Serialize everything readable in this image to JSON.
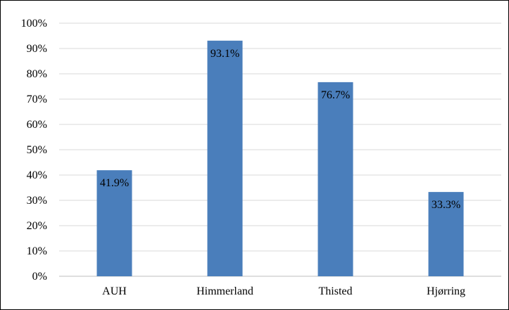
{
  "chart_data": {
    "type": "bar",
    "categories": [
      "AUH",
      "Himmerland",
      "Thisted",
      "Hjørring"
    ],
    "values": [
      41.9,
      93.1,
      76.7,
      33.3
    ],
    "data_labels": [
      "41.9%",
      "93.1%",
      "76.7%",
      "33.3%"
    ],
    "yticks": [
      "0%",
      "10%",
      "20%",
      "30%",
      "40%",
      "50%",
      "60%",
      "70%",
      "80%",
      "90%",
      "100%"
    ],
    "ylim": [
      0,
      100
    ],
    "title": "",
    "xlabel": "",
    "ylabel": "",
    "grid": true,
    "legend": "none",
    "colors": {
      "bar": "#4a7ebb",
      "grid": "#d9d9d9",
      "axis": "#bfbfbf"
    }
  }
}
